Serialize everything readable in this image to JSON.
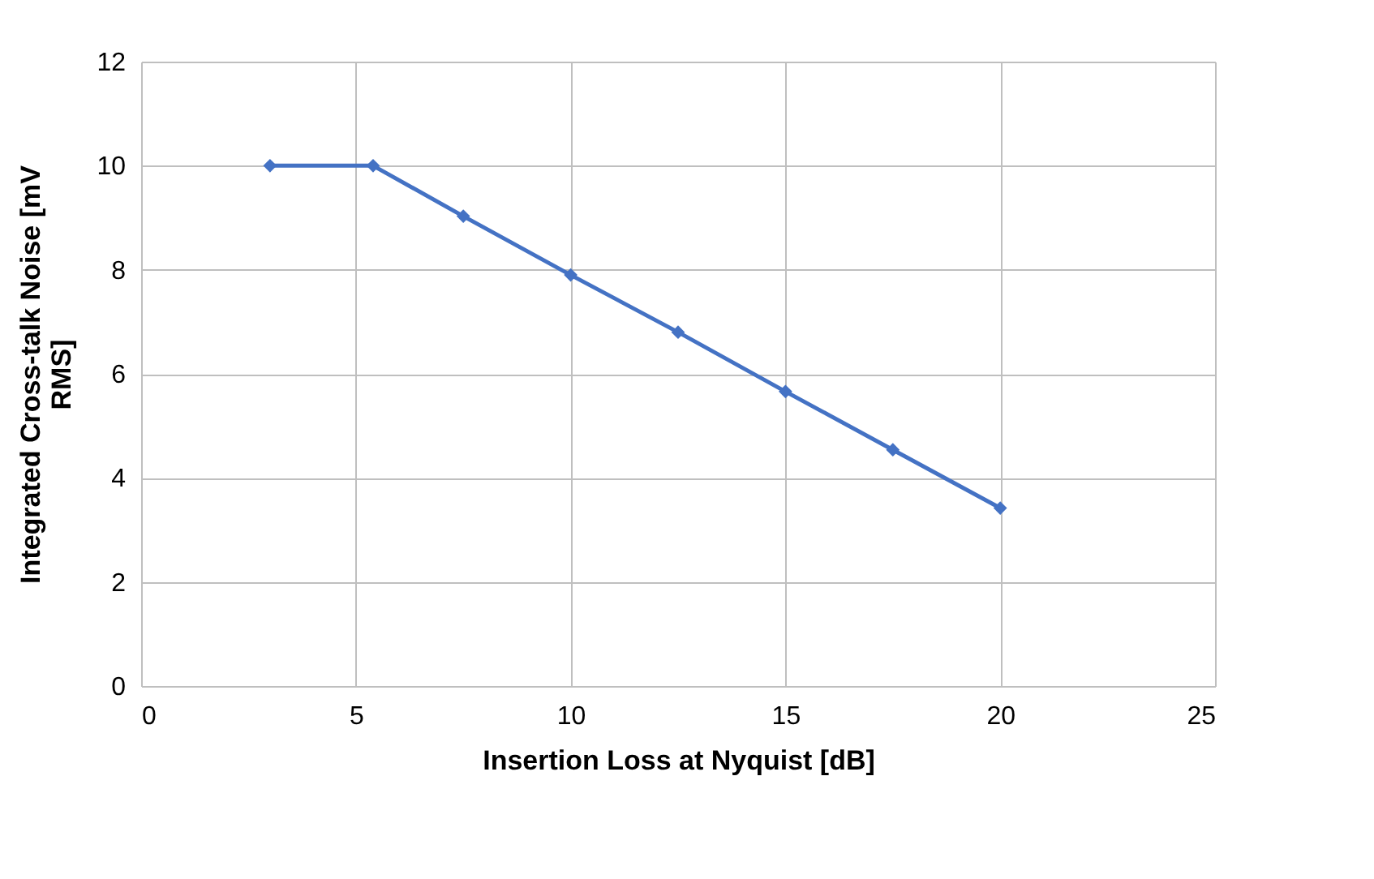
{
  "chart_data": {
    "type": "line",
    "xlabel": "Insertion Loss at Nyquist [dB]",
    "ylabel": "Integrated Cross-talk Noise [mV RMS]",
    "x": [
      3,
      5.4,
      7.5,
      10,
      12.5,
      15,
      17.5,
      20
    ],
    "series": [
      {
        "color": "#4472c4",
        "values": [
          10,
          10,
          9.03,
          7.9,
          6.8,
          5.66,
          4.54,
          3.42
        ]
      }
    ],
    "xlim": [
      0,
      25
    ],
    "xticks": [
      0,
      5,
      10,
      15,
      20,
      25
    ],
    "ylim": [
      0,
      12
    ],
    "yticks": [
      0,
      2,
      4,
      6,
      8,
      10,
      12
    ],
    "grid": true,
    "marker": "diamond",
    "line_style": "solid"
  }
}
